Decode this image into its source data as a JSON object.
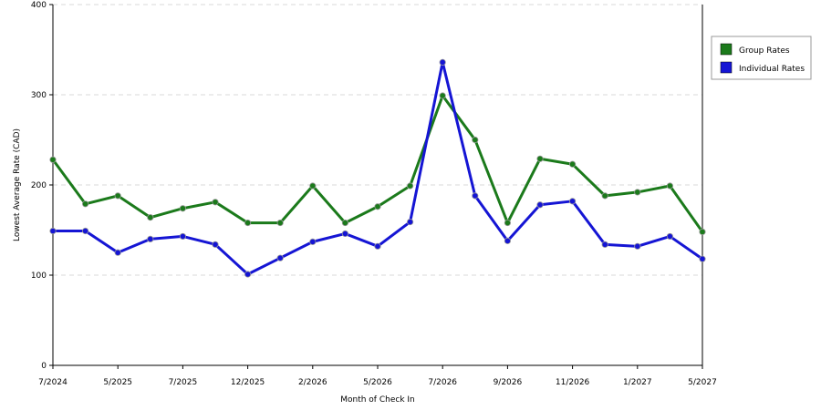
{
  "chart_data": {
    "type": "line",
    "title": "",
    "xlabel": "Month of Check In",
    "ylabel": "Lowest Average Rate (CAD)",
    "ylim": [
      0,
      400
    ],
    "yticks": [
      0,
      100,
      200,
      300,
      400
    ],
    "grid": "horizontal dashed",
    "legend_position": "right",
    "x_tick_labels": [
      "7/2024",
      "5/2025",
      "7/2025",
      "12/2025",
      "2/2026",
      "5/2026",
      "7/2026",
      "9/2026",
      "11/2026",
      "1/2027",
      "5/2027"
    ],
    "x_tick_indices": [
      0,
      2,
      4,
      6,
      8,
      10,
      12,
      14,
      16,
      18,
      20
    ],
    "point_count": 21,
    "series": [
      {
        "name": "Group Rates",
        "color": "#1b7a1b",
        "values": [
          228,
          179,
          188,
          164,
          174,
          181,
          158,
          158,
          199,
          158,
          176,
          199,
          299,
          250,
          158,
          229,
          223,
          188,
          192,
          199,
          148
        ]
      },
      {
        "name": "Individual Rates",
        "color": "#1515d4",
        "values": [
          149,
          149,
          125,
          140,
          143,
          134,
          101,
          119,
          137,
          146,
          132,
          159,
          336,
          188,
          138,
          178,
          182,
          134,
          132,
          143,
          118
        ]
      }
    ]
  }
}
